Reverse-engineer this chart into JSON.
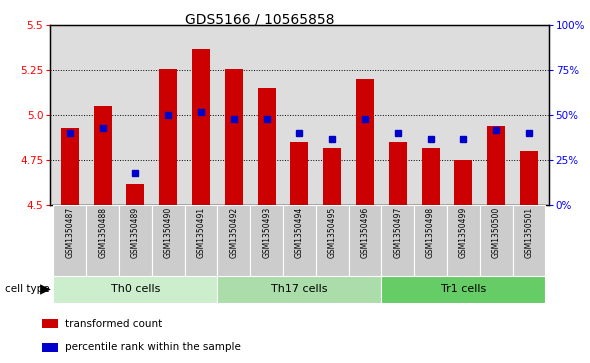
{
  "title": "GDS5166 / 10565858",
  "samples": [
    "GSM1350487",
    "GSM1350488",
    "GSM1350489",
    "GSM1350490",
    "GSM1350491",
    "GSM1350492",
    "GSM1350493",
    "GSM1350494",
    "GSM1350495",
    "GSM1350496",
    "GSM1350497",
    "GSM1350498",
    "GSM1350499",
    "GSM1350500",
    "GSM1350501"
  ],
  "bar_values": [
    4.93,
    5.05,
    4.62,
    5.26,
    5.37,
    5.26,
    5.15,
    4.85,
    4.82,
    5.2,
    4.85,
    4.82,
    4.75,
    4.94,
    4.8
  ],
  "dot_percentiles": [
    40,
    43,
    18,
    50,
    52,
    48,
    48,
    40,
    37,
    48,
    40,
    37,
    37,
    42,
    40
  ],
  "cell_groups": [
    {
      "label": "Th0 cells",
      "start": 0,
      "end": 5,
      "color": "#cceecc"
    },
    {
      "label": "Th17 cells",
      "start": 5,
      "end": 10,
      "color": "#99dd99"
    },
    {
      "label": "Tr1 cells",
      "start": 10,
      "end": 15,
      "color": "#55cc55"
    }
  ],
  "ylim_left": [
    4.5,
    5.5
  ],
  "yticks_left": [
    4.5,
    4.75,
    5.0,
    5.25,
    5.5
  ],
  "yticks_right_pct": [
    0,
    25,
    50,
    75,
    100
  ],
  "bar_color": "#cc0000",
  "dot_color": "#0000cc",
  "bar_width": 0.55,
  "plot_bg_color": "#dddddd",
  "tick_bg_color": "#cccccc",
  "legend_bar_label": "transformed count",
  "legend_dot_label": "percentile rank within the sample",
  "cell_type_label": "cell type"
}
